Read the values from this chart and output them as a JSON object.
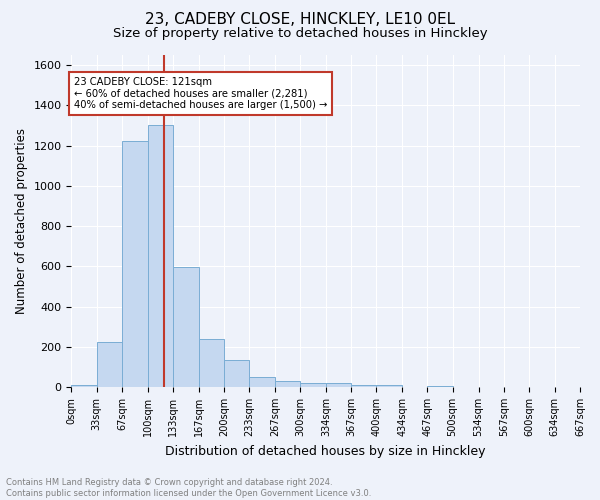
{
  "title": "23, CADEBY CLOSE, HINCKLEY, LE10 0EL",
  "subtitle": "Size of property relative to detached houses in Hinckley",
  "xlabel": "Distribution of detached houses by size in Hinckley",
  "ylabel": "Number of detached properties",
  "footnote1": "Contains HM Land Registry data © Crown copyright and database right 2024.",
  "footnote2": "Contains public sector information licensed under the Open Government Licence v3.0.",
  "bin_edges": [
    0,
    33,
    67,
    100,
    133,
    167,
    200,
    233,
    267,
    300,
    334,
    367,
    400,
    434,
    467,
    500,
    534,
    567,
    600,
    634,
    667
  ],
  "bar_heights": [
    10,
    225,
    1225,
    1300,
    595,
    240,
    135,
    50,
    30,
    22,
    20,
    10,
    10,
    0,
    7,
    0,
    0,
    0,
    0,
    0
  ],
  "bar_color": "#c5d8f0",
  "bar_edge_color": "#7aadd4",
  "vertical_line_x": 121,
  "vline_color": "#c0392b",
  "annotation_line1": "23 CADEBY CLOSE: 121sqm",
  "annotation_line2": "← 60% of detached houses are smaller (2,281)",
  "annotation_line3": "40% of semi-detached houses are larger (1,500) →",
  "annotation_box_color": "#c0392b",
  "ylim": [
    0,
    1650
  ],
  "yticks": [
    0,
    200,
    400,
    600,
    800,
    1000,
    1200,
    1400,
    1600
  ],
  "background_color": "#eef2fa",
  "grid_color": "#ffffff",
  "title_fontsize": 11,
  "subtitle_fontsize": 9.5,
  "tick_label_fontsize": 7,
  "ylabel_fontsize": 8.5,
  "xlabel_fontsize": 9,
  "footnote_fontsize": 6
}
